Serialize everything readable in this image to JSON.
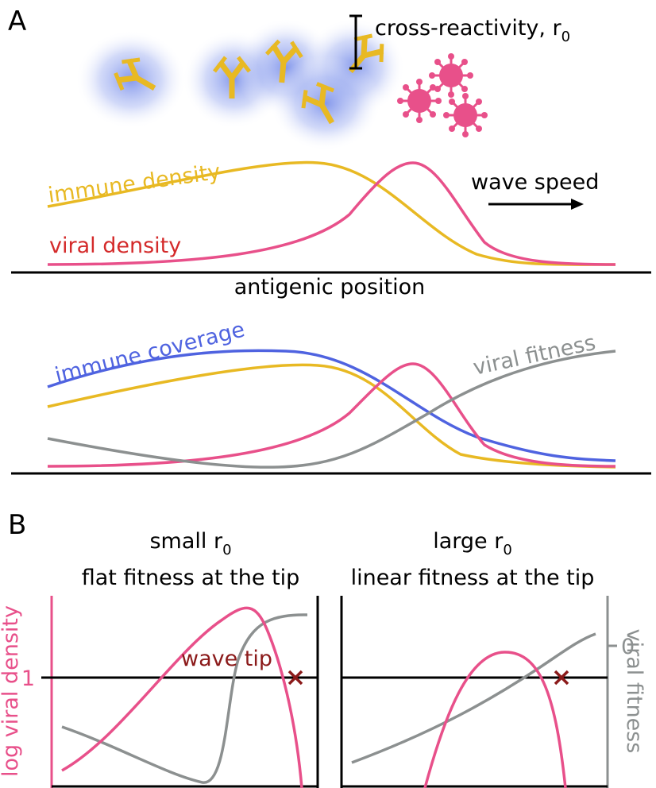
{
  "panel_a": {
    "label": "A",
    "cross_reactivity": {
      "text": "cross-reactivity, r",
      "subscript": "0"
    },
    "immune_density": "immune density",
    "viral_density": "viral density",
    "wave_speed": "wave speed",
    "x_axis": "antigenic position",
    "immune_coverage": "immune coverage",
    "viral_fitness": "viral fitness"
  },
  "panel_b": {
    "label": "B",
    "left": {
      "title": {
        "text": "small r",
        "subscript": "0"
      },
      "subtitle": "flat fitness at the tip",
      "y_label": "log viral density",
      "y_tick": "1",
      "annotation": "wave tip"
    },
    "right": {
      "title": {
        "text": "large r",
        "subscript": "0"
      },
      "subtitle": "linear fitness at the tip",
      "y_label": "viral fitness",
      "y_tick": "0"
    }
  }
}
